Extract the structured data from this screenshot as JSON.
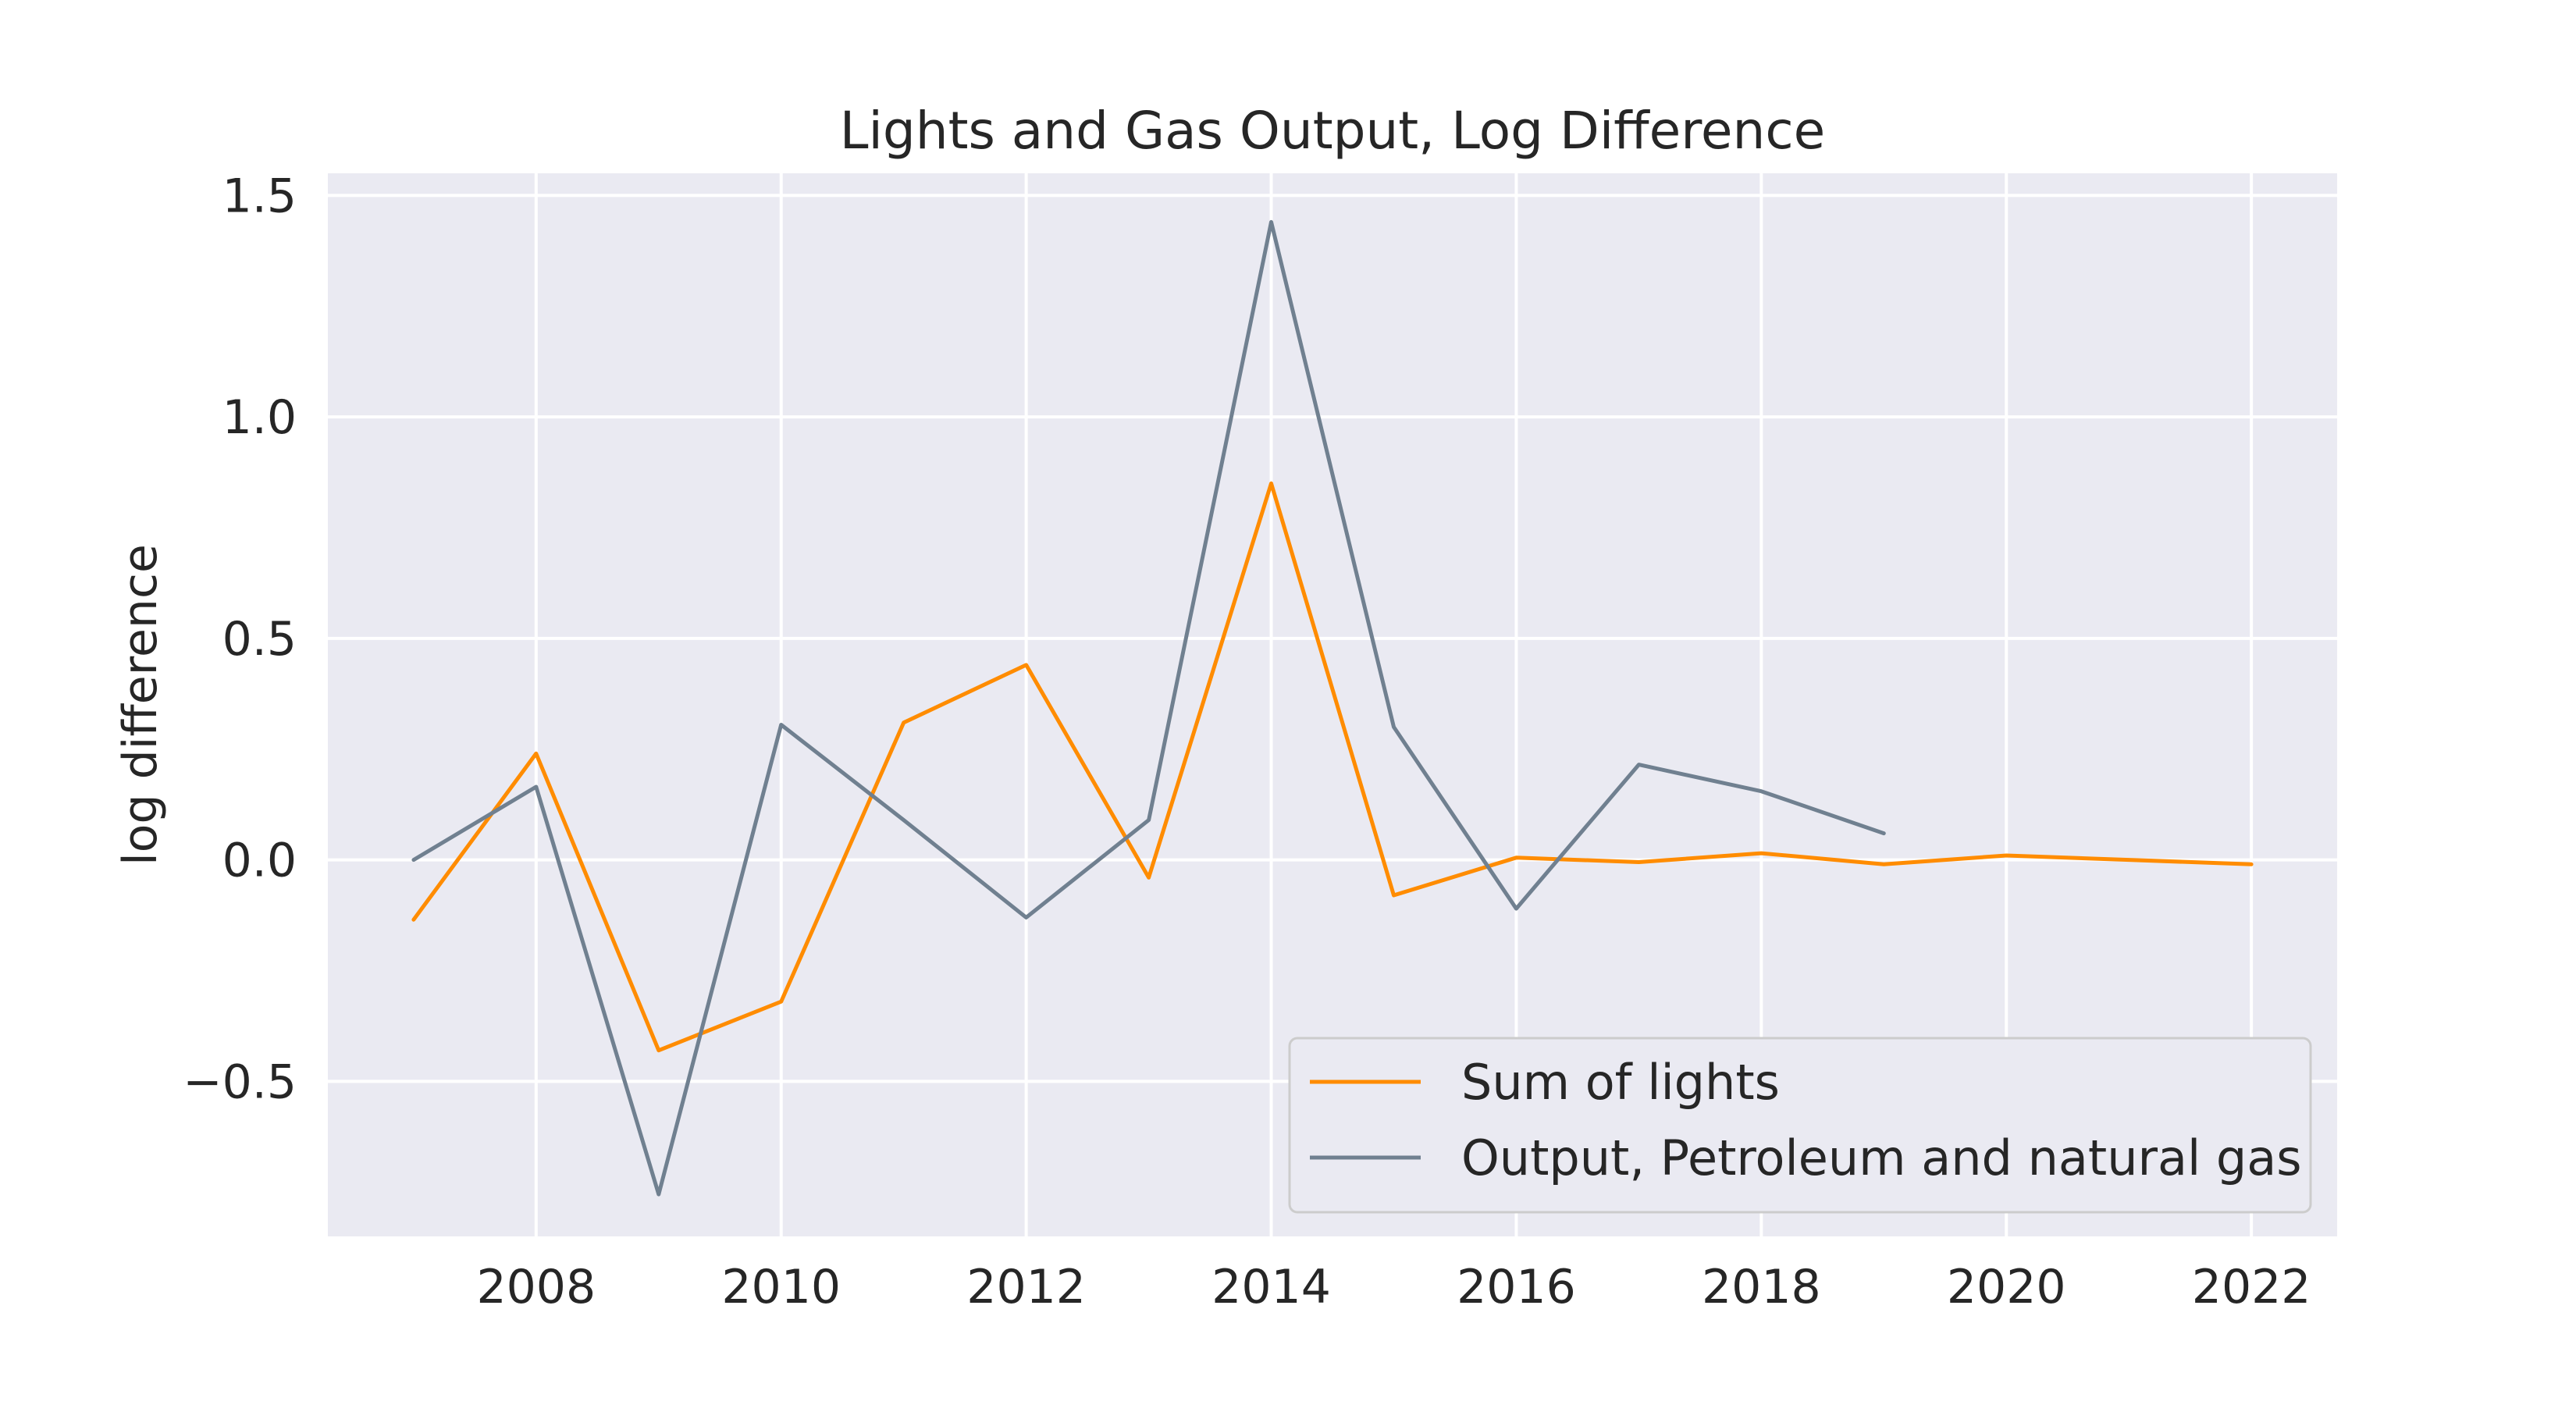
{
  "chart_data": {
    "type": "line",
    "title": "Lights and Gas Output, Log Difference",
    "xlabel": "",
    "ylabel": "log difference",
    "xlim": [
      2006.3,
      2022.7
    ],
    "ylim": [
      -0.85,
      1.55
    ],
    "xticks": [
      2008,
      2010,
      2012,
      2014,
      2016,
      2018,
      2020,
      2022
    ],
    "xtick_labels": [
      "2008",
      "2010",
      "2012",
      "2014",
      "2016",
      "2018",
      "2020",
      "2022"
    ],
    "yticks": [
      -0.5,
      0.0,
      0.5,
      1.0,
      1.5
    ],
    "ytick_labels": [
      "−0.5",
      "0.0",
      "0.5",
      "1.0",
      "1.5"
    ],
    "grid": true,
    "legend_position": "lower-right",
    "background": "#eaeaf2",
    "series": [
      {
        "name": "Sum of lights",
        "color": "#ff8c00",
        "x": [
          2007,
          2008,
          2009,
          2010,
          2011,
          2012,
          2013,
          2014,
          2015,
          2016,
          2017,
          2018,
          2019,
          2020,
          2021,
          2022
        ],
        "y": [
          -0.135,
          0.24,
          -0.43,
          -0.32,
          0.31,
          0.44,
          -0.04,
          0.85,
          -0.08,
          0.005,
          -0.005,
          0.015,
          -0.01,
          0.01,
          0.0,
          -0.01
        ]
      },
      {
        "name": "Output, Petroleum and natural gas",
        "color": "#708090",
        "x": [
          2007,
          2008,
          2009,
          2010,
          2011,
          2012,
          2013,
          2014,
          2015,
          2016,
          2017,
          2018,
          2019
        ],
        "y": [
          0.0,
          0.165,
          -0.755,
          0.305,
          0.09,
          -0.13,
          0.09,
          1.44,
          0.3,
          -0.11,
          0.215,
          0.155,
          0.06
        ]
      }
    ]
  }
}
